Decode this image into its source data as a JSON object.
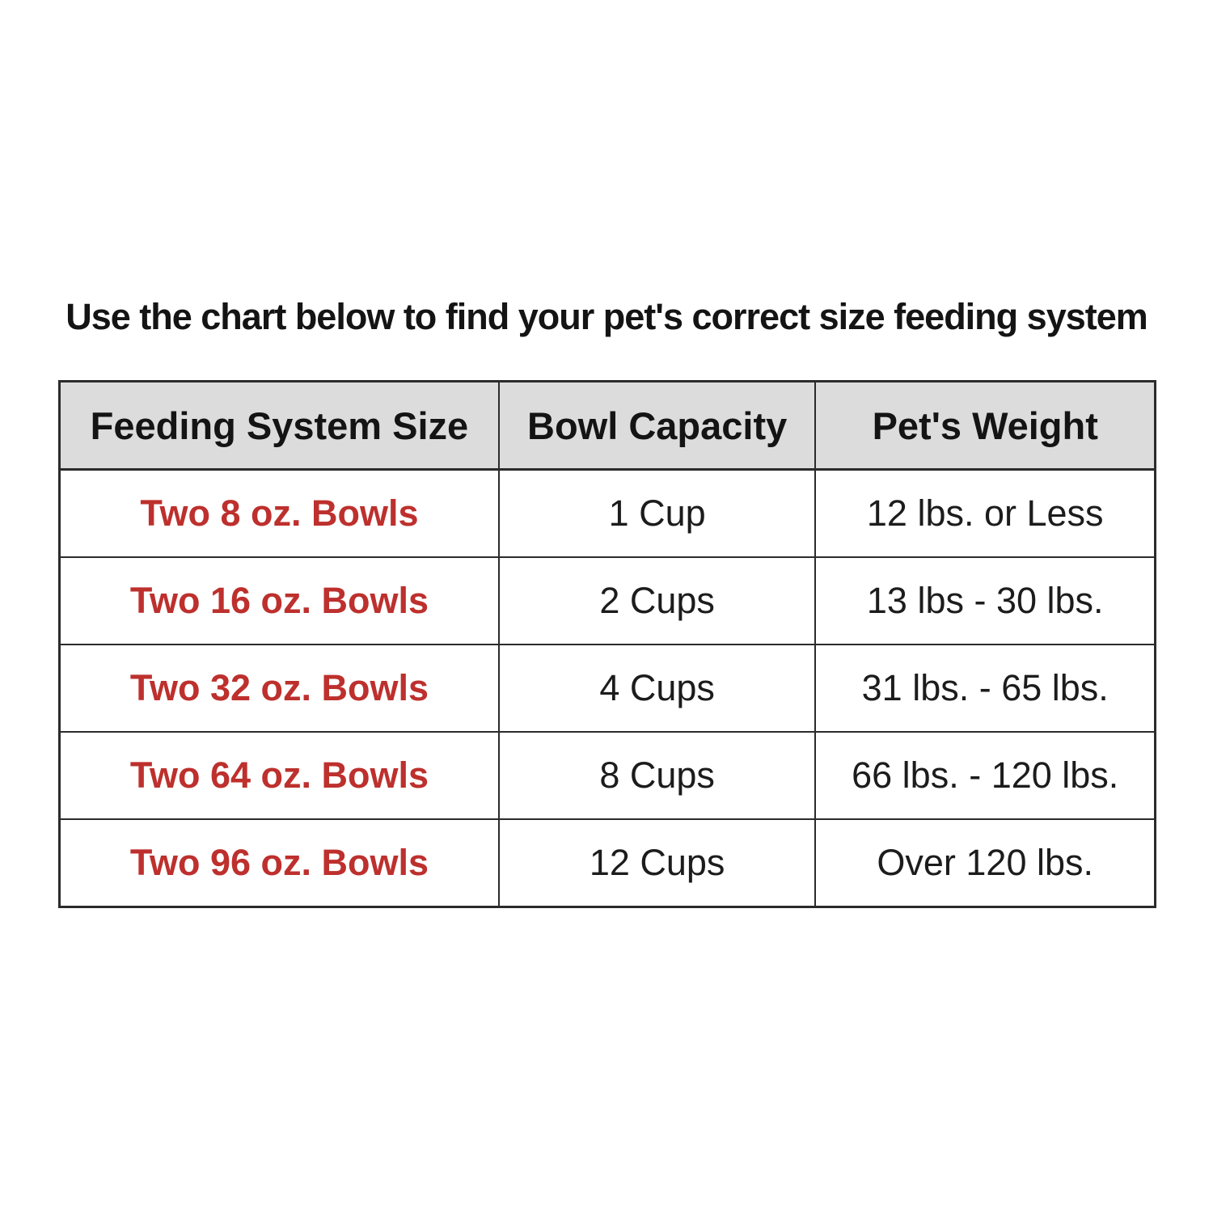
{
  "title": "Use the chart below to find your pet's correct size feeding system",
  "colors": {
    "accent_red": "#bd302d",
    "header_bg": "#dcdcdc",
    "border": "#2b2b2b",
    "text": "#1c1c1c",
    "background": "#ffffff"
  },
  "chart_data": {
    "type": "table",
    "title": "Use the chart below to find your pet's correct size feeding system",
    "columns": [
      "Feeding System Size",
      "Bowl Capacity",
      "Pet's Weight"
    ],
    "rows": [
      [
        "Two 8 oz. Bowls",
        "1 Cup",
        "12 lbs. or Less"
      ],
      [
        "Two 16 oz. Bowls",
        "2 Cups",
        "13 lbs - 30 lbs."
      ],
      [
        "Two 32 oz. Bowls",
        "4 Cups",
        "31 lbs. - 65 lbs."
      ],
      [
        "Two 64 oz. Bowls",
        "8 Cups",
        "66 lbs. - 120 lbs."
      ],
      [
        "Two 96 oz. Bowls",
        "12 Cups",
        "Over 120 lbs."
      ]
    ],
    "layout": {
      "header_background": "#dcdcdc",
      "size_column_color": "#bd302d",
      "grid": true
    }
  }
}
